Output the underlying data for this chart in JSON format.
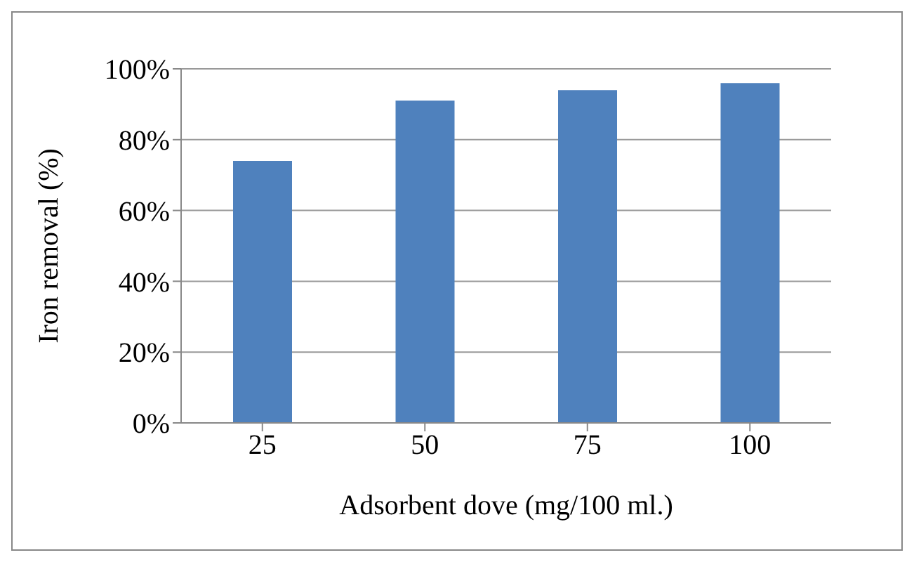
{
  "chart_data": {
    "type": "bar",
    "xlabel": "Adsorbent dove (mg/100 ml.)",
    "ylabel": "Iron removal (%)",
    "categories": [
      "25",
      "50",
      "75",
      "100"
    ],
    "values": [
      74,
      91,
      94,
      96
    ],
    "color": "#4f81bd",
    "ylim": [
      0,
      100
    ],
    "yticks": [
      {
        "value": 0,
        "label": "0%"
      },
      {
        "value": 20,
        "label": "20%"
      },
      {
        "value": 40,
        "label": "40%"
      },
      {
        "value": 60,
        "label": "60%"
      },
      {
        "value": 80,
        "label": "80%"
      },
      {
        "value": 100,
        "label": "100%"
      }
    ],
    "grid": "y"
  }
}
